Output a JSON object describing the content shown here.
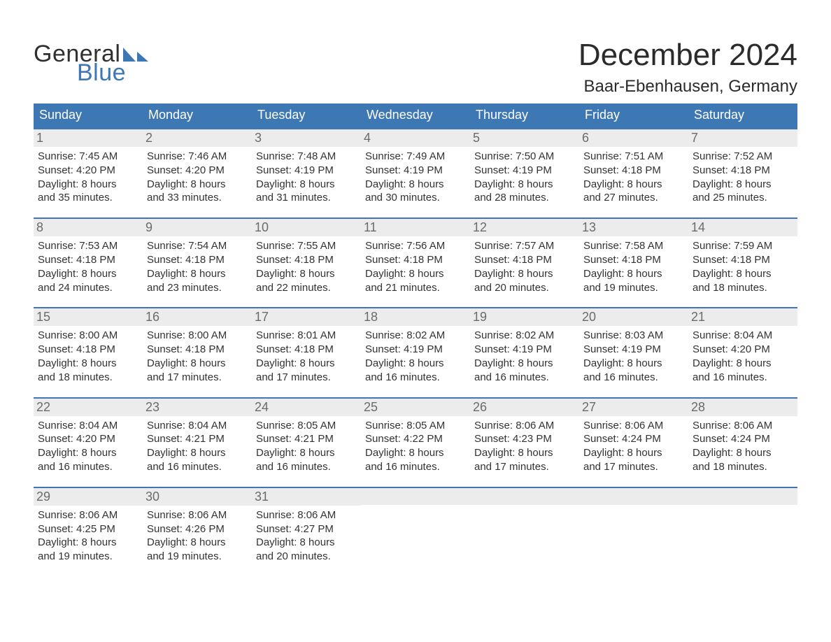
{
  "brand": {
    "word1": "General",
    "word2": "Blue",
    "word1_color": "#2f2f2f",
    "word2_color": "#3d78b5",
    "sail_color": "#3d78b5"
  },
  "header": {
    "month_title": "December 2024",
    "location": "Baar-Ebenhausen, Germany"
  },
  "colors": {
    "header_bg": "#3d78b5",
    "header_text": "#ffffff",
    "daynum_bg": "#ececec",
    "daynum_text": "#6b6b6b",
    "row_border": "#3d78b5",
    "body_text": "#333333",
    "page_bg": "#ffffff"
  },
  "typography": {
    "month_title_fontsize": 44,
    "location_fontsize": 24,
    "weekday_fontsize": 18,
    "daynum_fontsize": 18,
    "body_fontsize": 15,
    "font_family": "Arial"
  },
  "weekdays": [
    "Sunday",
    "Monday",
    "Tuesday",
    "Wednesday",
    "Thursday",
    "Friday",
    "Saturday"
  ],
  "weeks": [
    [
      {
        "num": "1",
        "sunrise": "7:45 AM",
        "sunset": "4:20 PM",
        "daylight1": "Daylight: 8 hours",
        "daylight2": "and 35 minutes."
      },
      {
        "num": "2",
        "sunrise": "7:46 AM",
        "sunset": "4:20 PM",
        "daylight1": "Daylight: 8 hours",
        "daylight2": "and 33 minutes."
      },
      {
        "num": "3",
        "sunrise": "7:48 AM",
        "sunset": "4:19 PM",
        "daylight1": "Daylight: 8 hours",
        "daylight2": "and 31 minutes."
      },
      {
        "num": "4",
        "sunrise": "7:49 AM",
        "sunset": "4:19 PM",
        "daylight1": "Daylight: 8 hours",
        "daylight2": "and 30 minutes."
      },
      {
        "num": "5",
        "sunrise": "7:50 AM",
        "sunset": "4:19 PM",
        "daylight1": "Daylight: 8 hours",
        "daylight2": "and 28 minutes."
      },
      {
        "num": "6",
        "sunrise": "7:51 AM",
        "sunset": "4:18 PM",
        "daylight1": "Daylight: 8 hours",
        "daylight2": "and 27 minutes."
      },
      {
        "num": "7",
        "sunrise": "7:52 AM",
        "sunset": "4:18 PM",
        "daylight1": "Daylight: 8 hours",
        "daylight2": "and 25 minutes."
      }
    ],
    [
      {
        "num": "8",
        "sunrise": "7:53 AM",
        "sunset": "4:18 PM",
        "daylight1": "Daylight: 8 hours",
        "daylight2": "and 24 minutes."
      },
      {
        "num": "9",
        "sunrise": "7:54 AM",
        "sunset": "4:18 PM",
        "daylight1": "Daylight: 8 hours",
        "daylight2": "and 23 minutes."
      },
      {
        "num": "10",
        "sunrise": "7:55 AM",
        "sunset": "4:18 PM",
        "daylight1": "Daylight: 8 hours",
        "daylight2": "and 22 minutes."
      },
      {
        "num": "11",
        "sunrise": "7:56 AM",
        "sunset": "4:18 PM",
        "daylight1": "Daylight: 8 hours",
        "daylight2": "and 21 minutes."
      },
      {
        "num": "12",
        "sunrise": "7:57 AM",
        "sunset": "4:18 PM",
        "daylight1": "Daylight: 8 hours",
        "daylight2": "and 20 minutes."
      },
      {
        "num": "13",
        "sunrise": "7:58 AM",
        "sunset": "4:18 PM",
        "daylight1": "Daylight: 8 hours",
        "daylight2": "and 19 minutes."
      },
      {
        "num": "14",
        "sunrise": "7:59 AM",
        "sunset": "4:18 PM",
        "daylight1": "Daylight: 8 hours",
        "daylight2": "and 18 minutes."
      }
    ],
    [
      {
        "num": "15",
        "sunrise": "8:00 AM",
        "sunset": "4:18 PM",
        "daylight1": "Daylight: 8 hours",
        "daylight2": "and 18 minutes."
      },
      {
        "num": "16",
        "sunrise": "8:00 AM",
        "sunset": "4:18 PM",
        "daylight1": "Daylight: 8 hours",
        "daylight2": "and 17 minutes."
      },
      {
        "num": "17",
        "sunrise": "8:01 AM",
        "sunset": "4:18 PM",
        "daylight1": "Daylight: 8 hours",
        "daylight2": "and 17 minutes."
      },
      {
        "num": "18",
        "sunrise": "8:02 AM",
        "sunset": "4:19 PM",
        "daylight1": "Daylight: 8 hours",
        "daylight2": "and 16 minutes."
      },
      {
        "num": "19",
        "sunrise": "8:02 AM",
        "sunset": "4:19 PM",
        "daylight1": "Daylight: 8 hours",
        "daylight2": "and 16 minutes."
      },
      {
        "num": "20",
        "sunrise": "8:03 AM",
        "sunset": "4:19 PM",
        "daylight1": "Daylight: 8 hours",
        "daylight2": "and 16 minutes."
      },
      {
        "num": "21",
        "sunrise": "8:04 AM",
        "sunset": "4:20 PM",
        "daylight1": "Daylight: 8 hours",
        "daylight2": "and 16 minutes."
      }
    ],
    [
      {
        "num": "22",
        "sunrise": "8:04 AM",
        "sunset": "4:20 PM",
        "daylight1": "Daylight: 8 hours",
        "daylight2": "and 16 minutes."
      },
      {
        "num": "23",
        "sunrise": "8:04 AM",
        "sunset": "4:21 PM",
        "daylight1": "Daylight: 8 hours",
        "daylight2": "and 16 minutes."
      },
      {
        "num": "24",
        "sunrise": "8:05 AM",
        "sunset": "4:21 PM",
        "daylight1": "Daylight: 8 hours",
        "daylight2": "and 16 minutes."
      },
      {
        "num": "25",
        "sunrise": "8:05 AM",
        "sunset": "4:22 PM",
        "daylight1": "Daylight: 8 hours",
        "daylight2": "and 16 minutes."
      },
      {
        "num": "26",
        "sunrise": "8:06 AM",
        "sunset": "4:23 PM",
        "daylight1": "Daylight: 8 hours",
        "daylight2": "and 17 minutes."
      },
      {
        "num": "27",
        "sunrise": "8:06 AM",
        "sunset": "4:24 PM",
        "daylight1": "Daylight: 8 hours",
        "daylight2": "and 17 minutes."
      },
      {
        "num": "28",
        "sunrise": "8:06 AM",
        "sunset": "4:24 PM",
        "daylight1": "Daylight: 8 hours",
        "daylight2": "and 18 minutes."
      }
    ],
    [
      {
        "num": "29",
        "sunrise": "8:06 AM",
        "sunset": "4:25 PM",
        "daylight1": "Daylight: 8 hours",
        "daylight2": "and 19 minutes."
      },
      {
        "num": "30",
        "sunrise": "8:06 AM",
        "sunset": "4:26 PM",
        "daylight1": "Daylight: 8 hours",
        "daylight2": "and 19 minutes."
      },
      {
        "num": "31",
        "sunrise": "8:06 AM",
        "sunset": "4:27 PM",
        "daylight1": "Daylight: 8 hours",
        "daylight2": "and 20 minutes."
      },
      null,
      null,
      null,
      null
    ]
  ],
  "labels": {
    "sunrise_prefix": "Sunrise: ",
    "sunset_prefix": "Sunset: "
  }
}
